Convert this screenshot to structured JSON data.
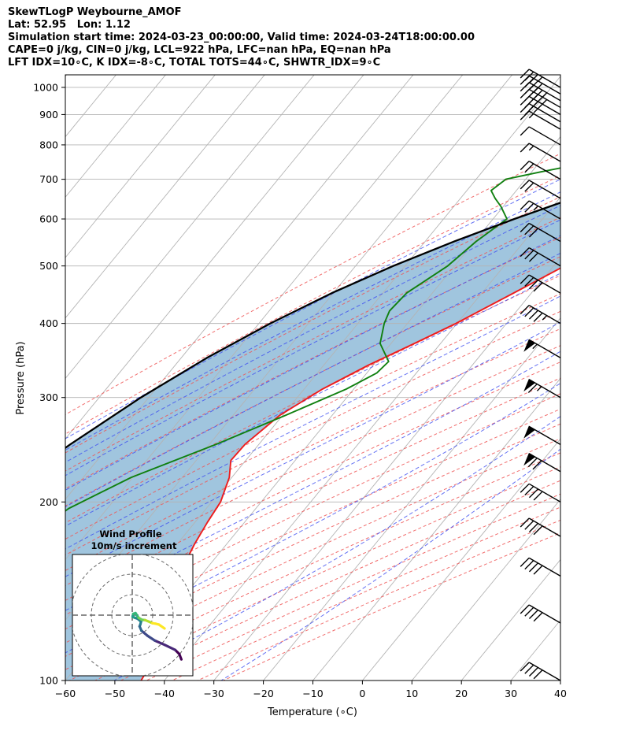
{
  "header": {
    "line1": "SkewTLogP Weybourne_AMOF",
    "line2": "Lat: 52.95   Lon: 1.12",
    "line3": "Simulation start time: 2024-03-23_00:00:00, Valid time: 2024-03-24T18:00:00.00",
    "line4": "CAPE=0 j/kg, CIN=0 j/kg, LCL=922 hPa, LFC=nan hPa, EQ=nan hPa",
    "line5": "LFT IDX=10∘C, K IDX=-8∘C, TOTAL TOTS=44∘C, SHWTR_IDX=9∘C"
  },
  "chart_data": {
    "type": "line",
    "subtype": "skew-t log-p",
    "xlabel": "Temperature (∘C)",
    "ylabel": "Pressure (hPa)",
    "xlim": [
      -60,
      40
    ],
    "ylim": [
      1050,
      100
    ],
    "y_scale": "log",
    "grid": true,
    "x_ticks": [
      -60,
      -50,
      -40,
      -30,
      -20,
      -10,
      0,
      10,
      20,
      30,
      40
    ],
    "x_tick_labels": [
      "−60",
      "−50",
      "−40",
      "−30",
      "−20",
      "−10",
      "0",
      "10",
      "20",
      "30",
      "40"
    ],
    "y_ticks": [
      100,
      200,
      300,
      400,
      500,
      600,
      700,
      800,
      900,
      1000
    ],
    "y_tick_labels": [
      "100",
      "200",
      "300",
      "400",
      "500",
      "600",
      "700",
      "800",
      "900",
      "1000"
    ],
    "series": [
      {
        "role": "temperature",
        "color": "#ee1c1c",
        "p": [
          1000,
          975,
          950,
          925,
          900,
          875,
          850,
          825,
          800,
          750,
          700,
          650,
          600,
          550,
          500,
          450,
          400,
          370,
          340,
          310,
          280,
          250,
          235,
          220,
          200,
          185,
          170,
          155,
          145,
          130,
          115,
          100
        ],
        "t": [
          6.8,
          6.6,
          5.0,
          3.0,
          1.2,
          -0.4,
          -2.0,
          -3.6,
          -5.0,
          -7.5,
          -10.5,
          -14.2,
          -18.2,
          -22.9,
          -27.8,
          -33.6,
          -40.2,
          -45.3,
          -51.0,
          -56.3,
          -60.6,
          -62.8,
          -63.0,
          -60.5,
          -58.2,
          -57.5,
          -56.5,
          -55.0,
          -53.3,
          -48.3,
          -46.3,
          -44.7
        ]
      },
      {
        "role": "dewpoint",
        "color": "#108010",
        "p": [
          1000,
          990,
          975,
          950,
          925,
          900,
          880,
          860,
          850,
          830,
          800,
          770,
          740,
          720,
          700,
          670,
          650,
          630,
          600,
          550,
          500,
          450,
          420,
          400,
          370,
          345,
          330,
          310,
          280,
          250,
          220,
          195,
          175,
          160,
          150,
          135,
          115,
          100
        ],
        "t": [
          3.2,
          -1.0,
          -0.2,
          -0.8,
          -2.8,
          -4.8,
          -7.0,
          -9.6,
          -10.8,
          -14.5,
          -20.9,
          -30.8,
          -42.2,
          -48.3,
          -54.0,
          -55.1,
          -53.0,
          -50.5,
          -47.2,
          -49.7,
          -51.4,
          -55.2,
          -55.7,
          -54.7,
          -52.2,
          -47.5,
          -48.0,
          -51.5,
          -59.4,
          -68.7,
          -80.3,
          -87.8,
          -90.8,
          -91.0,
          -95.6,
          -96.6,
          -95.5,
          -94.5
        ]
      },
      {
        "role": "parcel",
        "color": "#000000",
        "p": [
          1000,
          975,
          950,
          922,
          900,
          875,
          850,
          800,
          750,
          700,
          650,
          600,
          550,
          500,
          450,
          400,
          350,
          300,
          250,
          200,
          150,
          100
        ],
        "t": [
          7.2,
          5.1,
          3.2,
          0.8,
          -1.6,
          -4.6,
          -7.6,
          -14.3,
          -21.5,
          -29.2,
          -37.3,
          -45.7,
          -54.1,
          -62.4,
          -70.3,
          -77.7,
          -84.8,
          -91.6,
          -98.1,
          -104.7,
          -111.8,
          -121.8
        ]
      }
    ],
    "wind_barbs": {
      "p": [
        1000,
        975,
        950,
        925,
        900,
        875,
        850,
        800,
        750,
        700,
        650,
        600,
        550,
        500,
        450,
        400,
        350,
        300,
        250,
        225,
        200,
        175,
        150,
        125,
        100
      ],
      "speed_kt": [
        35,
        40,
        45,
        45,
        40,
        20,
        15,
        10,
        15,
        20,
        20,
        25,
        30,
        30,
        40,
        45,
        55,
        65,
        50,
        70,
        40,
        40,
        40,
        40,
        40
      ],
      "dir_deg": [
        300,
        300,
        300,
        300,
        300,
        300,
        300,
        300,
        300,
        300,
        300,
        300,
        300,
        300,
        300,
        300,
        300,
        300,
        300,
        300,
        300,
        300,
        300,
        300,
        300
      ]
    },
    "hodograph": {
      "title": "Wind Profile",
      "subtitle": "10m/s increment",
      "u": [
        24.0,
        23.0,
        21.0,
        16.0,
        11.0,
        7.5,
        4.5,
        3.6,
        4.0,
        4.3,
        2.7,
        1.1,
        0.2,
        0.5,
        1.6,
        3.1,
        4.8,
        6.2,
        8.0,
        9.8,
        11.5,
        13.0,
        15.8
      ],
      "v": [
        -21.6,
        -19.0,
        -17.0,
        -14.6,
        -12.4,
        -10.1,
        -7.6,
        -5.5,
        -4.4,
        -3.2,
        -1.8,
        -1.2,
        -0.8,
        0.6,
        1.0,
        -1.3,
        -2.3,
        -2.4,
        -3.1,
        -3.9,
        -4.2,
        -4.6,
        -6.5
      ],
      "rings": [
        10,
        20,
        30
      ]
    }
  }
}
